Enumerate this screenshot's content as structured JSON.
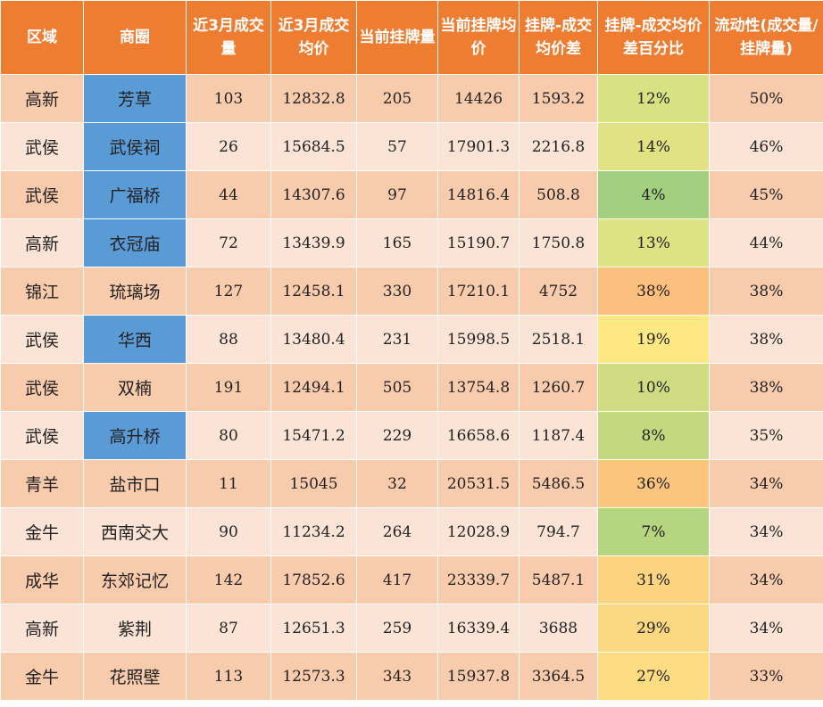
{
  "colors": {
    "header_bg": "#ee7d31",
    "row_odd": "#f8cbad",
    "row_even": "#fbe4d6",
    "highlight_blue": "#5b9bd5"
  },
  "headers": [
    "区域",
    "商圈",
    "近3月成交量",
    "近3月成交均价",
    "当前挂牌量",
    "当前挂牌均价",
    "挂牌-成交均价差",
    "挂牌-成交均价差百分比",
    "流动性(成交量/挂牌量)"
  ],
  "rows": [
    {
      "district": "高新",
      "area": "芳草",
      "deals": "103",
      "deal_price": "12832.8",
      "listings": "205",
      "list_price": "14426",
      "diff": "1593.2",
      "diff_pct": "12%",
      "liquidity": "50%",
      "highlight": true,
      "pct_color": "#d9e283"
    },
    {
      "district": "武侯",
      "area": "武侯祠",
      "deals": "26",
      "deal_price": "15684.5",
      "listings": "57",
      "list_price": "17901.3",
      "diff": "2216.8",
      "diff_pct": "14%",
      "liquidity": "46%",
      "highlight": true,
      "pct_color": "#e0e283"
    },
    {
      "district": "武侯",
      "area": "广福桥",
      "deals": "44",
      "deal_price": "14307.6",
      "listings": "97",
      "list_price": "14816.4",
      "diff": "508.8",
      "diff_pct": "4%",
      "liquidity": "45%",
      "highlight": true,
      "pct_color": "#a3d07f"
    },
    {
      "district": "高新",
      "area": "衣冠庙",
      "deals": "72",
      "deal_price": "13439.9",
      "listings": "165",
      "list_price": "15190.7",
      "diff": "1750.8",
      "diff_pct": "13%",
      "liquidity": "44%",
      "highlight": true,
      "pct_color": "#dde283"
    },
    {
      "district": "锦江",
      "area": "琉璃场",
      "deals": "127",
      "deal_price": "12458.1",
      "listings": "330",
      "list_price": "17210.1",
      "diff": "4752",
      "diff_pct": "38%",
      "liquidity": "38%",
      "highlight": false,
      "pct_color": "#fbc07d"
    },
    {
      "district": "武侯",
      "area": "华西",
      "deals": "88",
      "deal_price": "13480.4",
      "listings": "231",
      "list_price": "15998.5",
      "diff": "2518.1",
      "diff_pct": "19%",
      "liquidity": "38%",
      "highlight": true,
      "pct_color": "#fde884"
    },
    {
      "district": "武侯",
      "area": "双楠",
      "deals": "191",
      "deal_price": "12494.1",
      "listings": "505",
      "list_price": "13754.8",
      "diff": "1260.7",
      "diff_pct": "10%",
      "liquidity": "38%",
      "highlight": false,
      "pct_color": "#cfdc82"
    },
    {
      "district": "武侯",
      "area": "高升桥",
      "deals": "80",
      "deal_price": "15471.2",
      "listings": "229",
      "list_price": "16658.6",
      "diff": "1187.4",
      "diff_pct": "8%",
      "liquidity": "35%",
      "highlight": true,
      "pct_color": "#c3d881"
    },
    {
      "district": "青羊",
      "area": "盐市口",
      "deals": "11",
      "deal_price": "15045",
      "listings": "32",
      "list_price": "20531.5",
      "diff": "5486.5",
      "diff_pct": "36%",
      "liquidity": "34%",
      "highlight": false,
      "pct_color": "#fbc57e"
    },
    {
      "district": "金牛",
      "area": "西南交大",
      "deals": "90",
      "deal_price": "11234.2",
      "listings": "264",
      "list_price": "12028.9",
      "diff": "794.7",
      "diff_pct": "7%",
      "liquidity": "34%",
      "highlight": false,
      "pct_color": "#b6d580"
    },
    {
      "district": "成华",
      "area": "东郊记忆",
      "deals": "142",
      "deal_price": "17852.6",
      "listings": "417",
      "list_price": "23339.7",
      "diff": "5487.1",
      "diff_pct": "31%",
      "liquidity": "34%",
      "highlight": false,
      "pct_color": "#fcd480"
    },
    {
      "district": "高新",
      "area": "紫荆",
      "deals": "87",
      "deal_price": "12651.3",
      "listings": "259",
      "list_price": "16339.4",
      "diff": "3688",
      "diff_pct": "29%",
      "liquidity": "34%",
      "highlight": false,
      "pct_color": "#fcd781"
    },
    {
      "district": "金牛",
      "area": "花照壁",
      "deals": "113",
      "deal_price": "12573.3",
      "listings": "343",
      "list_price": "15937.8",
      "diff": "3364.5",
      "diff_pct": "27%",
      "liquidity": "33%",
      "highlight": false,
      "pct_color": "#fddc82"
    }
  ]
}
